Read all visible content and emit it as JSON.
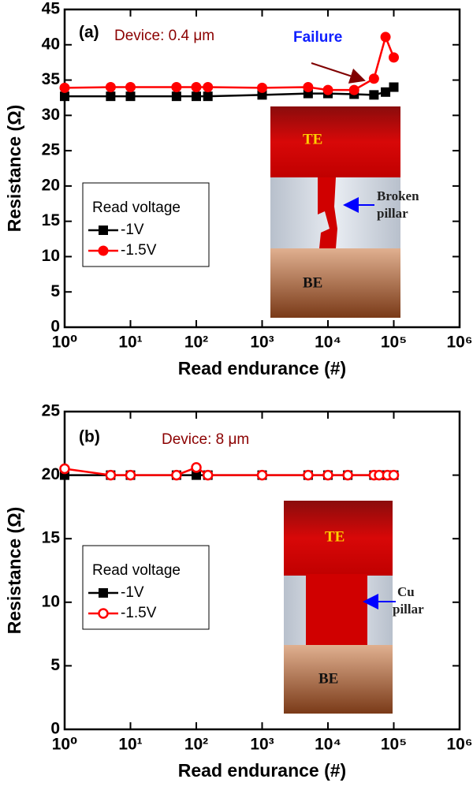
{
  "chart_data": [
    {
      "type": "line",
      "xscale": "log",
      "x_label": "Read endurance (#)",
      "y_label": "Resistance (Ω)",
      "x": [
        1,
        5,
        10,
        50,
        100,
        150,
        1000,
        5000,
        10000,
        25000,
        50000,
        75000,
        100000
      ],
      "series": [
        {
          "name": "-1V",
          "color": "#000000",
          "marker": "square",
          "values": [
            32.7,
            32.7,
            32.7,
            32.7,
            32.7,
            32.7,
            32.9,
            33.1,
            33.1,
            33.0,
            32.9,
            33.3,
            34.0
          ]
        },
        {
          "name": "-1.5V",
          "color": "#ff0000",
          "marker": "circle",
          "values": [
            33.9,
            34.0,
            34.0,
            34.0,
            34.0,
            34.0,
            33.9,
            34.0,
            33.6,
            33.6,
            35.2,
            41.1,
            38.2
          ]
        }
      ],
      "legend_title": "Read voltage",
      "xlim": [
        1,
        1000000
      ],
      "xticks": [
        {
          "value": 1,
          "label": "10⁰"
        },
        {
          "value": 10,
          "label": "10¹"
        },
        {
          "value": 100,
          "label": "10²"
        },
        {
          "value": 1000,
          "label": "10³"
        },
        {
          "value": 10000,
          "label": "10⁴"
        },
        {
          "value": 100000,
          "label": "10⁵"
        },
        {
          "value": 1000000,
          "label": "10⁶"
        }
      ],
      "ylim": [
        0,
        45
      ],
      "yticks": [
        0,
        5,
        10,
        15,
        20,
        25,
        30,
        35,
        40,
        45
      ],
      "annotations": [
        "(a)",
        "Device: 0.4 μm",
        "Failure"
      ],
      "inset": {
        "top": "TE",
        "middle": [
          "Broken",
          "pillar"
        ],
        "bottom": "BE"
      }
    },
    {
      "type": "line",
      "xscale": "log",
      "x_label": "Read endurance (#)",
      "y_label": "Resistance (Ω)",
      "x": [
        1,
        5,
        10,
        50,
        100,
        150,
        1000,
        5000,
        10000,
        20000,
        50000,
        60000,
        80000,
        100000
      ],
      "series": [
        {
          "name": "-1V",
          "color": "#000000",
          "marker": "square",
          "values": [
            20.0,
            20.0,
            20.0,
            20.0,
            20.0,
            20.0,
            20.0,
            20.0,
            20.0,
            20.0,
            20.0,
            20.0,
            20.0,
            20.0
          ]
        },
        {
          "name": "-1.5V",
          "color": "#ff0000",
          "marker": "circle-open",
          "values": [
            20.5,
            20.0,
            20.0,
            20.0,
            20.6,
            20.0,
            20.0,
            20.0,
            20.0,
            20.0,
            20.0,
            20.0,
            20.0,
            20.0
          ]
        }
      ],
      "legend_title": "Read voltage",
      "xlim": [
        1,
        1000000
      ],
      "xticks": [
        {
          "value": 1,
          "label": "10⁰"
        },
        {
          "value": 10,
          "label": "10¹"
        },
        {
          "value": 100,
          "label": "10²"
        },
        {
          "value": 1000,
          "label": "10³"
        },
        {
          "value": 10000,
          "label": "10⁴"
        },
        {
          "value": 100000,
          "label": "10⁵"
        },
        {
          "value": 1000000,
          "label": "10⁶"
        }
      ],
      "ylim": [
        0,
        25
      ],
      "yticks": [
        0,
        5,
        10,
        15,
        20,
        25
      ],
      "annotations": [
        "(b)",
        "Device: 8 μm"
      ],
      "inset": {
        "top": "TE",
        "middle": [
          "Cu",
          "pillar"
        ],
        "bottom": "BE"
      }
    }
  ]
}
